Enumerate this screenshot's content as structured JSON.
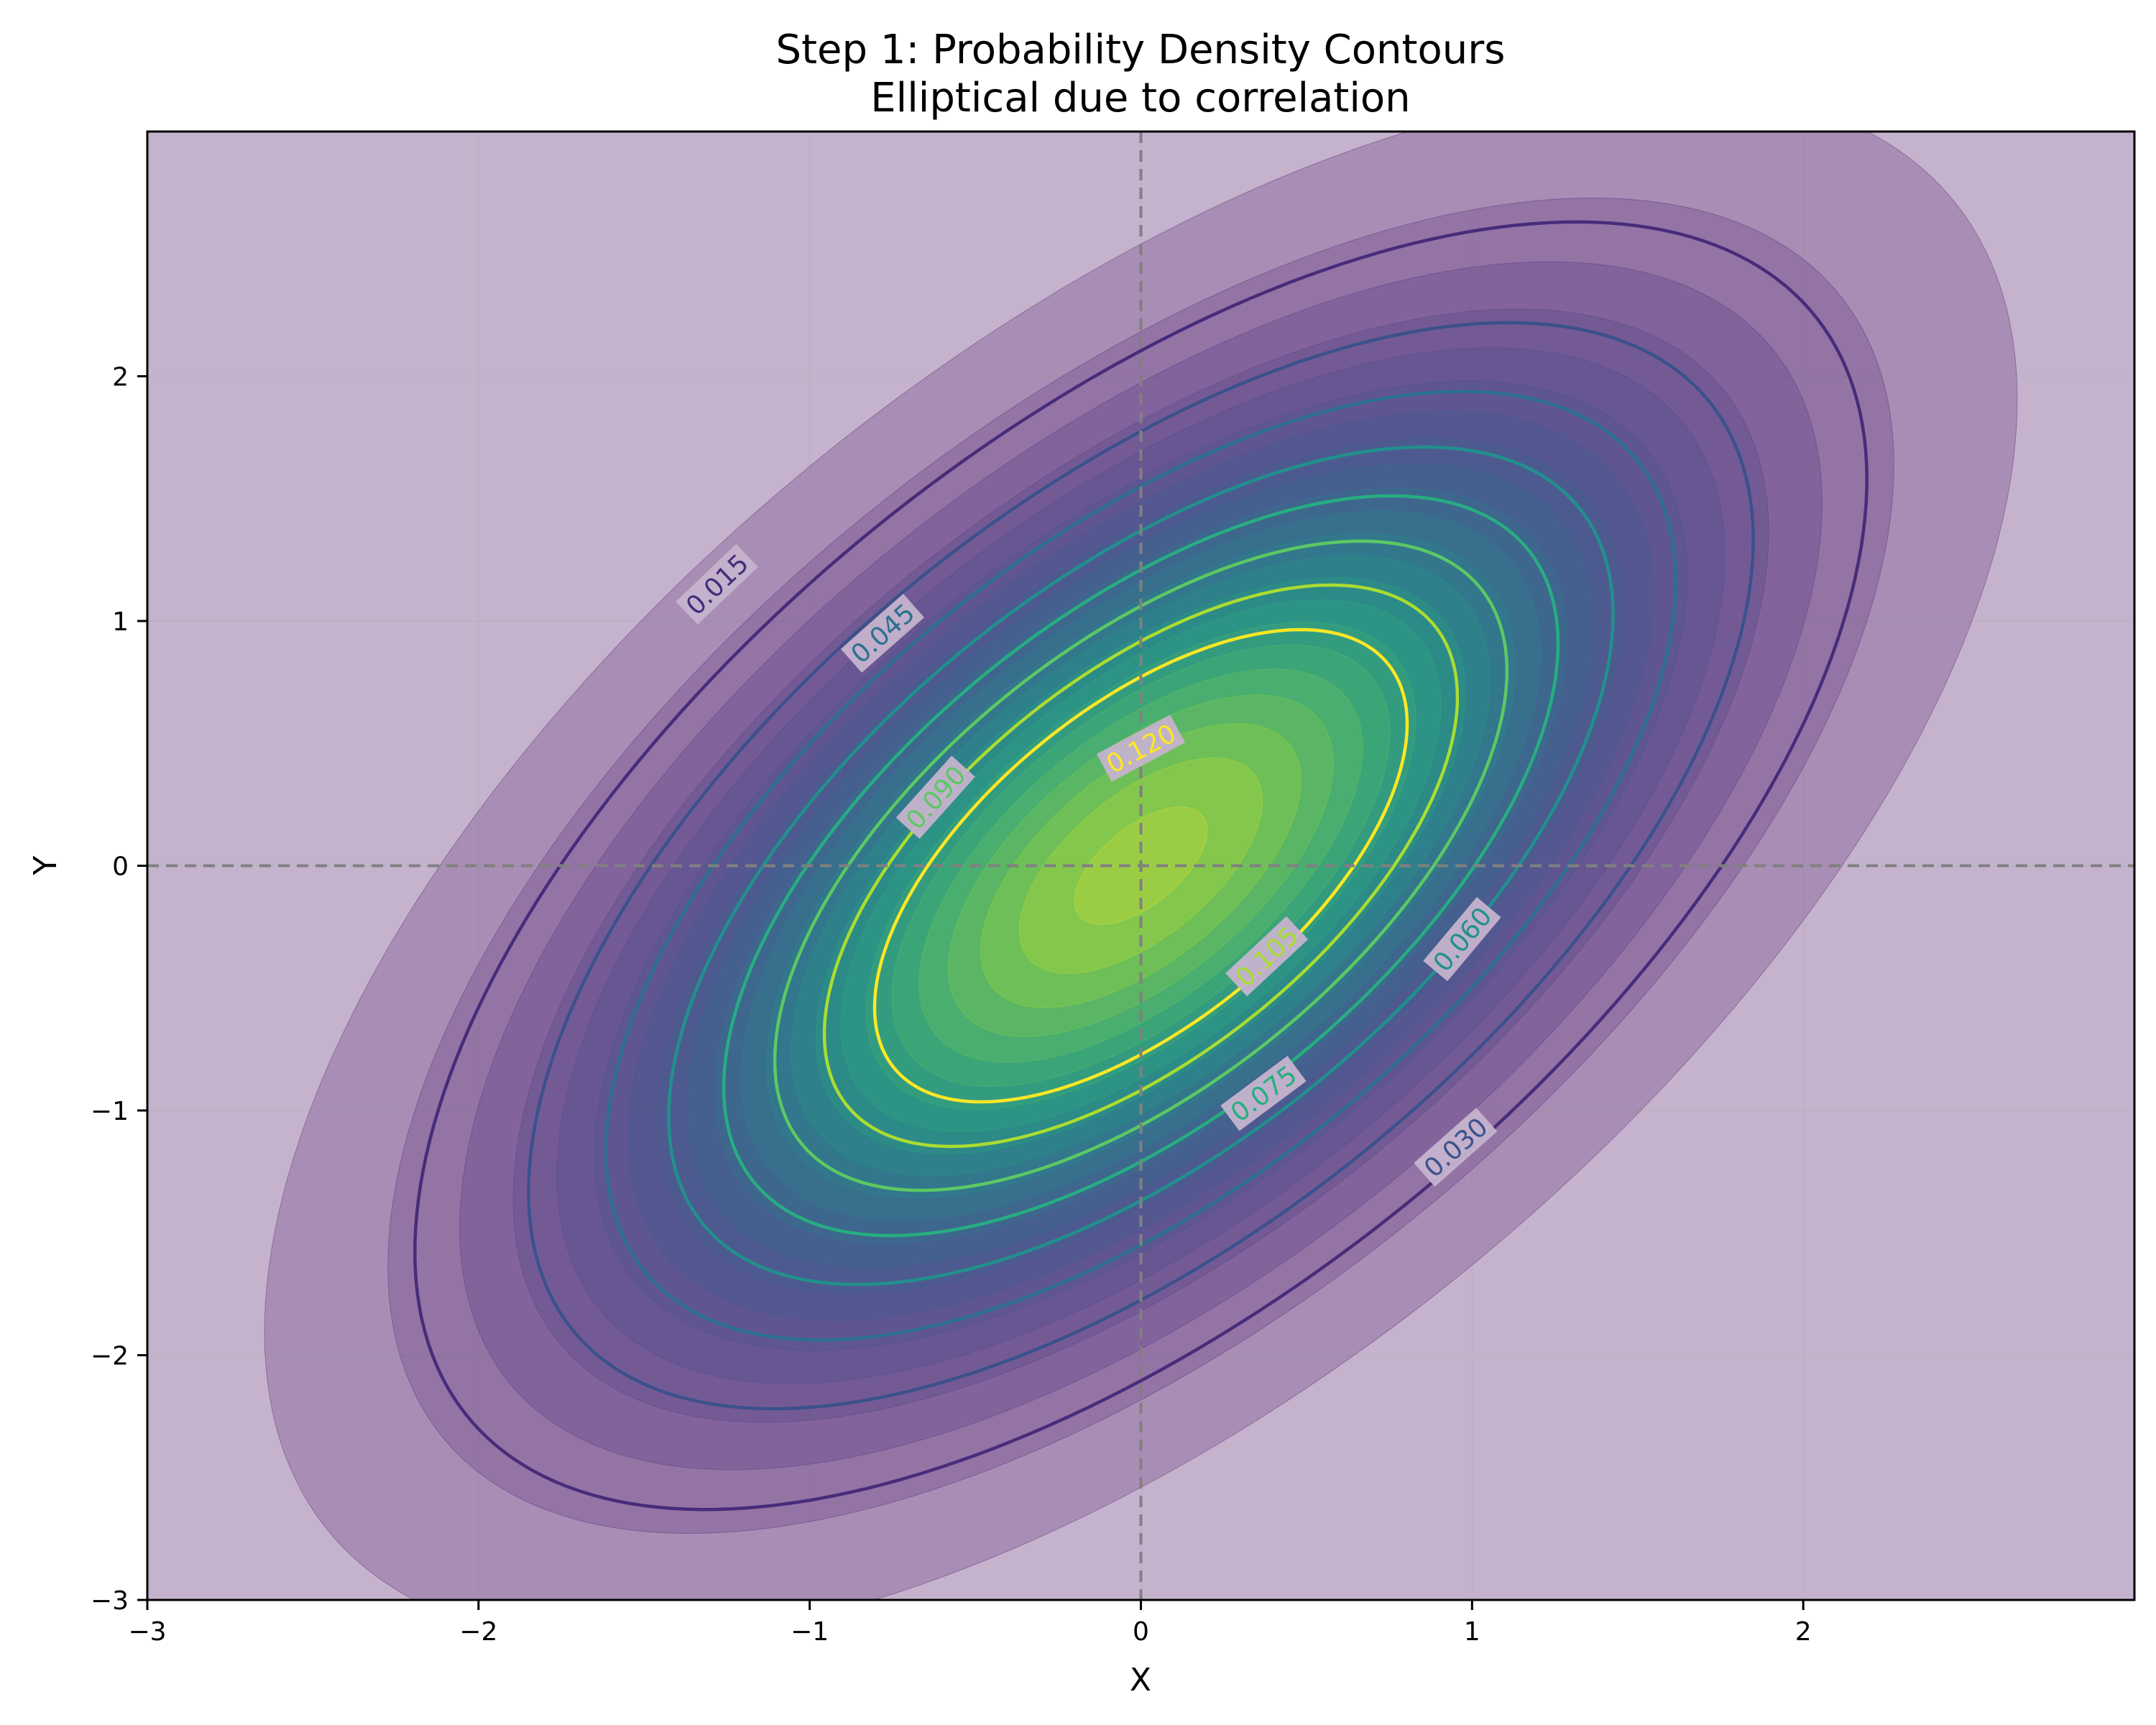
{
  "chart_data": {
    "type": "contour",
    "title": "Step 1: Probability Density Contours",
    "subtitle": "Elliptical due to correlation",
    "xlabel": "X",
    "ylabel": "Y",
    "xlim": [
      -3,
      3
    ],
    "ylim": [
      -3,
      3
    ],
    "x_ticks": [
      -3,
      -2,
      -1,
      0,
      1,
      2
    ],
    "y_ticks": [
      -3,
      -2,
      -1,
      0,
      1,
      2
    ],
    "x_tick_labels": [
      "−3",
      "−2",
      "−1",
      "0",
      "1",
      "2"
    ],
    "y_tick_labels": [
      "−3",
      "−2",
      "−1",
      "0",
      "1",
      "2"
    ],
    "grid": true,
    "reference_lines": {
      "x": 0,
      "y": 0,
      "style": "dashed",
      "color": "#808080"
    },
    "distribution": {
      "kind": "bivariate_normal",
      "mean": [
        0,
        0
      ],
      "std_x": 1.0,
      "std_y": 1.2,
      "correlation": 0.6
    },
    "contour_levels": [
      0.015,
      0.03,
      0.045,
      0.06,
      0.075,
      0.09,
      0.105,
      0.12
    ],
    "labeled_levels": [
      {
        "level": 0.015,
        "text": "0.015",
        "x": -1.28,
        "y": 1.15
      },
      {
        "level": 0.03,
        "text": "0.030",
        "x": 0.95,
        "y": -1.15
      },
      {
        "level": 0.045,
        "text": "0.045",
        "x": -0.78,
        "y": 0.95
      },
      {
        "level": 0.06,
        "text": "0.060",
        "x": 0.97,
        "y": -0.3
      },
      {
        "level": 0.075,
        "text": "0.075",
        "x": 0.37,
        "y": -0.93
      },
      {
        "level": 0.09,
        "text": "0.090",
        "x": -0.62,
        "y": 0.28
      },
      {
        "level": 0.105,
        "text": "0.105",
        "x": 0.38,
        "y": -0.37
      },
      {
        "level": 0.12,
        "text": "0.120",
        "x": 0.0,
        "y": 0.48
      }
    ],
    "colormap": "viridis",
    "filled_alpha": 0.3,
    "colors": {
      "background_fill": "#c5b3cd",
      "spine": "#000000",
      "grid": "#b0b0b0",
      "reference": "#808080",
      "level_colors": [
        "#472c7a",
        "#3b518b",
        "#2c718e",
        "#21908d",
        "#27ad81",
        "#5cc863",
        "#aadc32",
        "#fde725"
      ]
    }
  }
}
